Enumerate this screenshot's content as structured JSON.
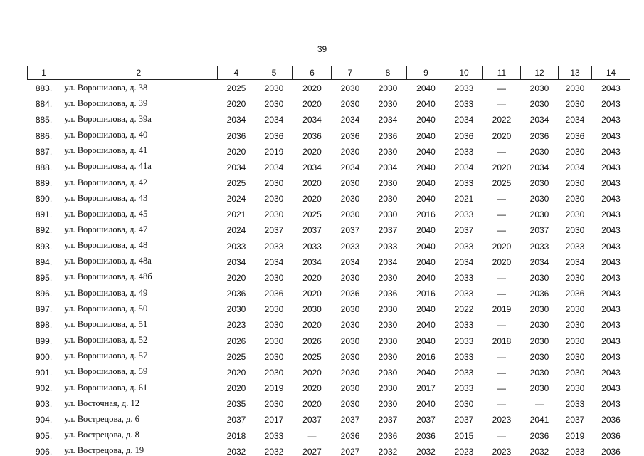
{
  "page_number": "39",
  "table": {
    "header": [
      "1",
      "2",
      "4",
      "5",
      "6",
      "7",
      "8",
      "9",
      "10",
      "11",
      "12",
      "13",
      "14"
    ],
    "rows": [
      [
        "883.",
        "ул. Ворошилова, д. 38",
        "2025",
        "2030",
        "2020",
        "2030",
        "2030",
        "2040",
        "2033",
        "—",
        "2030",
        "2030",
        "2043"
      ],
      [
        "884.",
        "ул. Ворошилова, д. 39",
        "2020",
        "2030",
        "2020",
        "2030",
        "2030",
        "2040",
        "2033",
        "—",
        "2030",
        "2030",
        "2043"
      ],
      [
        "885.",
        "ул. Ворошилова, д. 39а",
        "2034",
        "2034",
        "2034",
        "2034",
        "2034",
        "2040",
        "2034",
        "2022",
        "2034",
        "2034",
        "2043"
      ],
      [
        "886.",
        "ул. Ворошилова, д. 40",
        "2036",
        "2036",
        "2036",
        "2036",
        "2036",
        "2040",
        "2036",
        "2020",
        "2036",
        "2036",
        "2043"
      ],
      [
        "887.",
        "ул. Ворошилова, д. 41",
        "2020",
        "2019",
        "2020",
        "2030",
        "2030",
        "2040",
        "2033",
        "—",
        "2030",
        "2030",
        "2043"
      ],
      [
        "888.",
        "ул. Ворошилова, д. 41а",
        "2034",
        "2034",
        "2034",
        "2034",
        "2034",
        "2040",
        "2034",
        "2020",
        "2034",
        "2034",
        "2043"
      ],
      [
        "889.",
        "ул. Ворошилова, д. 42",
        "2025",
        "2030",
        "2020",
        "2030",
        "2030",
        "2040",
        "2033",
        "2025",
        "2030",
        "2030",
        "2043"
      ],
      [
        "890.",
        "ул. Ворошилова, д. 43",
        "2024",
        "2030",
        "2020",
        "2030",
        "2030",
        "2040",
        "2021",
        "—",
        "2030",
        "2030",
        "2043"
      ],
      [
        "891.",
        "ул. Ворошилова, д. 45",
        "2021",
        "2030",
        "2025",
        "2030",
        "2030",
        "2016",
        "2033",
        "—",
        "2030",
        "2030",
        "2043"
      ],
      [
        "892.",
        "ул. Ворошилова, д. 47",
        "2024",
        "2037",
        "2037",
        "2037",
        "2037",
        "2040",
        "2037",
        "—",
        "2037",
        "2030",
        "2043"
      ],
      [
        "893.",
        "ул. Ворошилова, д. 48",
        "2033",
        "2033",
        "2033",
        "2033",
        "2033",
        "2040",
        "2033",
        "2020",
        "2033",
        "2033",
        "2043"
      ],
      [
        "894.",
        "ул. Ворошилова, д. 48а",
        "2034",
        "2034",
        "2034",
        "2034",
        "2034",
        "2040",
        "2034",
        "2020",
        "2034",
        "2034",
        "2043"
      ],
      [
        "895.",
        "ул. Ворошилова, д. 48б",
        "2020",
        "2030",
        "2020",
        "2030",
        "2030",
        "2040",
        "2033",
        "—",
        "2030",
        "2030",
        "2043"
      ],
      [
        "896.",
        "ул. Ворошилова, д. 49",
        "2036",
        "2036",
        "2020",
        "2036",
        "2036",
        "2016",
        "2033",
        "—",
        "2036",
        "2036",
        "2043"
      ],
      [
        "897.",
        "ул. Ворошилова, д. 50",
        "2030",
        "2030",
        "2030",
        "2030",
        "2030",
        "2040",
        "2022",
        "2019",
        "2030",
        "2030",
        "2043"
      ],
      [
        "898.",
        "ул. Ворошилова, д. 51",
        "2023",
        "2030",
        "2020",
        "2030",
        "2030",
        "2040",
        "2033",
        "—",
        "2030",
        "2030",
        "2043"
      ],
      [
        "899.",
        "ул. Ворошилова, д. 52",
        "2026",
        "2030",
        "2026",
        "2030",
        "2030",
        "2040",
        "2033",
        "2018",
        "2030",
        "2030",
        "2043"
      ],
      [
        "900.",
        "ул. Ворошилова, д. 57",
        "2025",
        "2030",
        "2025",
        "2030",
        "2030",
        "2016",
        "2033",
        "—",
        "2030",
        "2030",
        "2043"
      ],
      [
        "901.",
        "ул. Ворошилова, д. 59",
        "2020",
        "2030",
        "2020",
        "2030",
        "2030",
        "2040",
        "2033",
        "—",
        "2030",
        "2030",
        "2043"
      ],
      [
        "902.",
        "ул. Ворошилова, д. 61",
        "2020",
        "2019",
        "2020",
        "2030",
        "2030",
        "2017",
        "2033",
        "—",
        "2030",
        "2030",
        "2043"
      ],
      [
        "903.",
        "ул. Восточная, д. 12",
        "2035",
        "2030",
        "2020",
        "2030",
        "2030",
        "2040",
        "2030",
        "—",
        "—",
        "2033",
        "2043"
      ],
      [
        "904.",
        "ул. Вострецова, д. 6",
        "2037",
        "2017",
        "2037",
        "2037",
        "2037",
        "2037",
        "2037",
        "2023",
        "2041",
        "2037",
        "2036"
      ],
      [
        "905.",
        "ул. Вострецова, д. 8",
        "2018",
        "2033",
        "—",
        "2036",
        "2036",
        "2036",
        "2015",
        "—",
        "2036",
        "2019",
        "2036"
      ],
      [
        "906.",
        "ул. Вострецова, д. 19",
        "2032",
        "2032",
        "2027",
        "2027",
        "2032",
        "2032",
        "2023",
        "2023",
        "2032",
        "2033",
        "2036"
      ]
    ]
  }
}
